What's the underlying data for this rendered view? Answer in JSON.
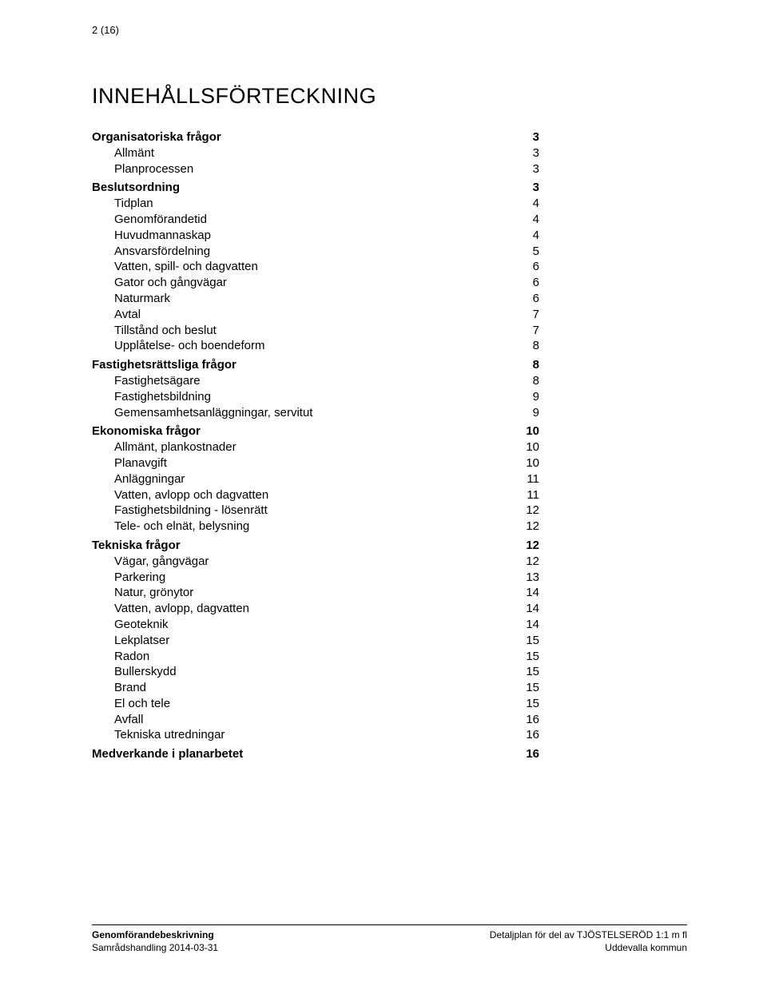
{
  "page_number": "2 (16)",
  "title": "INNEHÅLLSFÖRTECKNING",
  "sections": [
    {
      "heading": {
        "label": "Organisatoriska frågor",
        "page": "3"
      },
      "items": [
        {
          "label": "Allmänt",
          "page": "3"
        },
        {
          "label": "Planprocessen",
          "page": "3"
        }
      ]
    },
    {
      "heading": {
        "label": "Beslutsordning",
        "page": "3"
      },
      "items": [
        {
          "label": "Tidplan",
          "page": "4"
        },
        {
          "label": "Genomförandetid",
          "page": "4"
        },
        {
          "label": "Huvudmannaskap",
          "page": "4"
        },
        {
          "label": "Ansvarsfördelning",
          "page": "5"
        },
        {
          "label": "Vatten, spill- och dagvatten",
          "page": "6"
        },
        {
          "label": "Gator och gångvägar",
          "page": "6"
        },
        {
          "label": "Naturmark",
          "page": "6"
        },
        {
          "label": "Avtal",
          "page": "7"
        },
        {
          "label": "Tillstånd och beslut",
          "page": "7"
        },
        {
          "label": "Upplåtelse- och boendeform",
          "page": "8"
        }
      ]
    },
    {
      "heading": {
        "label": "Fastighetsrättsliga frågor",
        "page": "8"
      },
      "items": [
        {
          "label": "Fastighetsägare",
          "page": "8"
        },
        {
          "label": "Fastighetsbildning",
          "page": "9"
        },
        {
          "label": "Gemensamhetsanläggningar, servitut",
          "page": "9"
        }
      ]
    },
    {
      "heading": {
        "label": "Ekonomiska frågor",
        "page": "10"
      },
      "items": [
        {
          "label": "Allmänt, plankostnader",
          "page": "10"
        },
        {
          "label": "Planavgift",
          "page": "10"
        },
        {
          "label": "Anläggningar",
          "page": "11"
        },
        {
          "label": "Vatten, avlopp och dagvatten",
          "page": "11"
        },
        {
          "label": "Fastighetsbildning - lösenrätt",
          "page": "12"
        },
        {
          "label": "Tele- och elnät, belysning",
          "page": "12"
        }
      ]
    },
    {
      "heading": {
        "label": "Tekniska frågor",
        "page": "12"
      },
      "items": [
        {
          "label": "Vägar, gångvägar",
          "page": "12"
        },
        {
          "label": "Parkering",
          "page": "13"
        },
        {
          "label": "Natur, grönytor",
          "page": "14"
        },
        {
          "label": "Vatten, avlopp, dagvatten",
          "page": "14"
        },
        {
          "label": "Geoteknik",
          "page": "14"
        },
        {
          "label": "Lekplatser",
          "page": "15"
        },
        {
          "label": "Radon",
          "page": "15"
        },
        {
          "label": "Bullerskydd",
          "page": "15"
        },
        {
          "label": "Brand",
          "page": "15"
        },
        {
          "label": "El och tele",
          "page": "15"
        },
        {
          "label": "Avfall",
          "page": "16"
        },
        {
          "label": "Tekniska utredningar",
          "page": "16"
        }
      ]
    },
    {
      "heading": {
        "label": "Medverkande i planarbetet",
        "page": "16"
      },
      "items": []
    }
  ],
  "footer": {
    "left_line1": "Genomförandebeskrivning",
    "left_line2": "Samrådshandling 2014-03-31",
    "right_line1": "Detaljplan för del av TJÖSTELSERÖD 1:1 m fl",
    "right_line2": "Uddevalla kommun"
  }
}
